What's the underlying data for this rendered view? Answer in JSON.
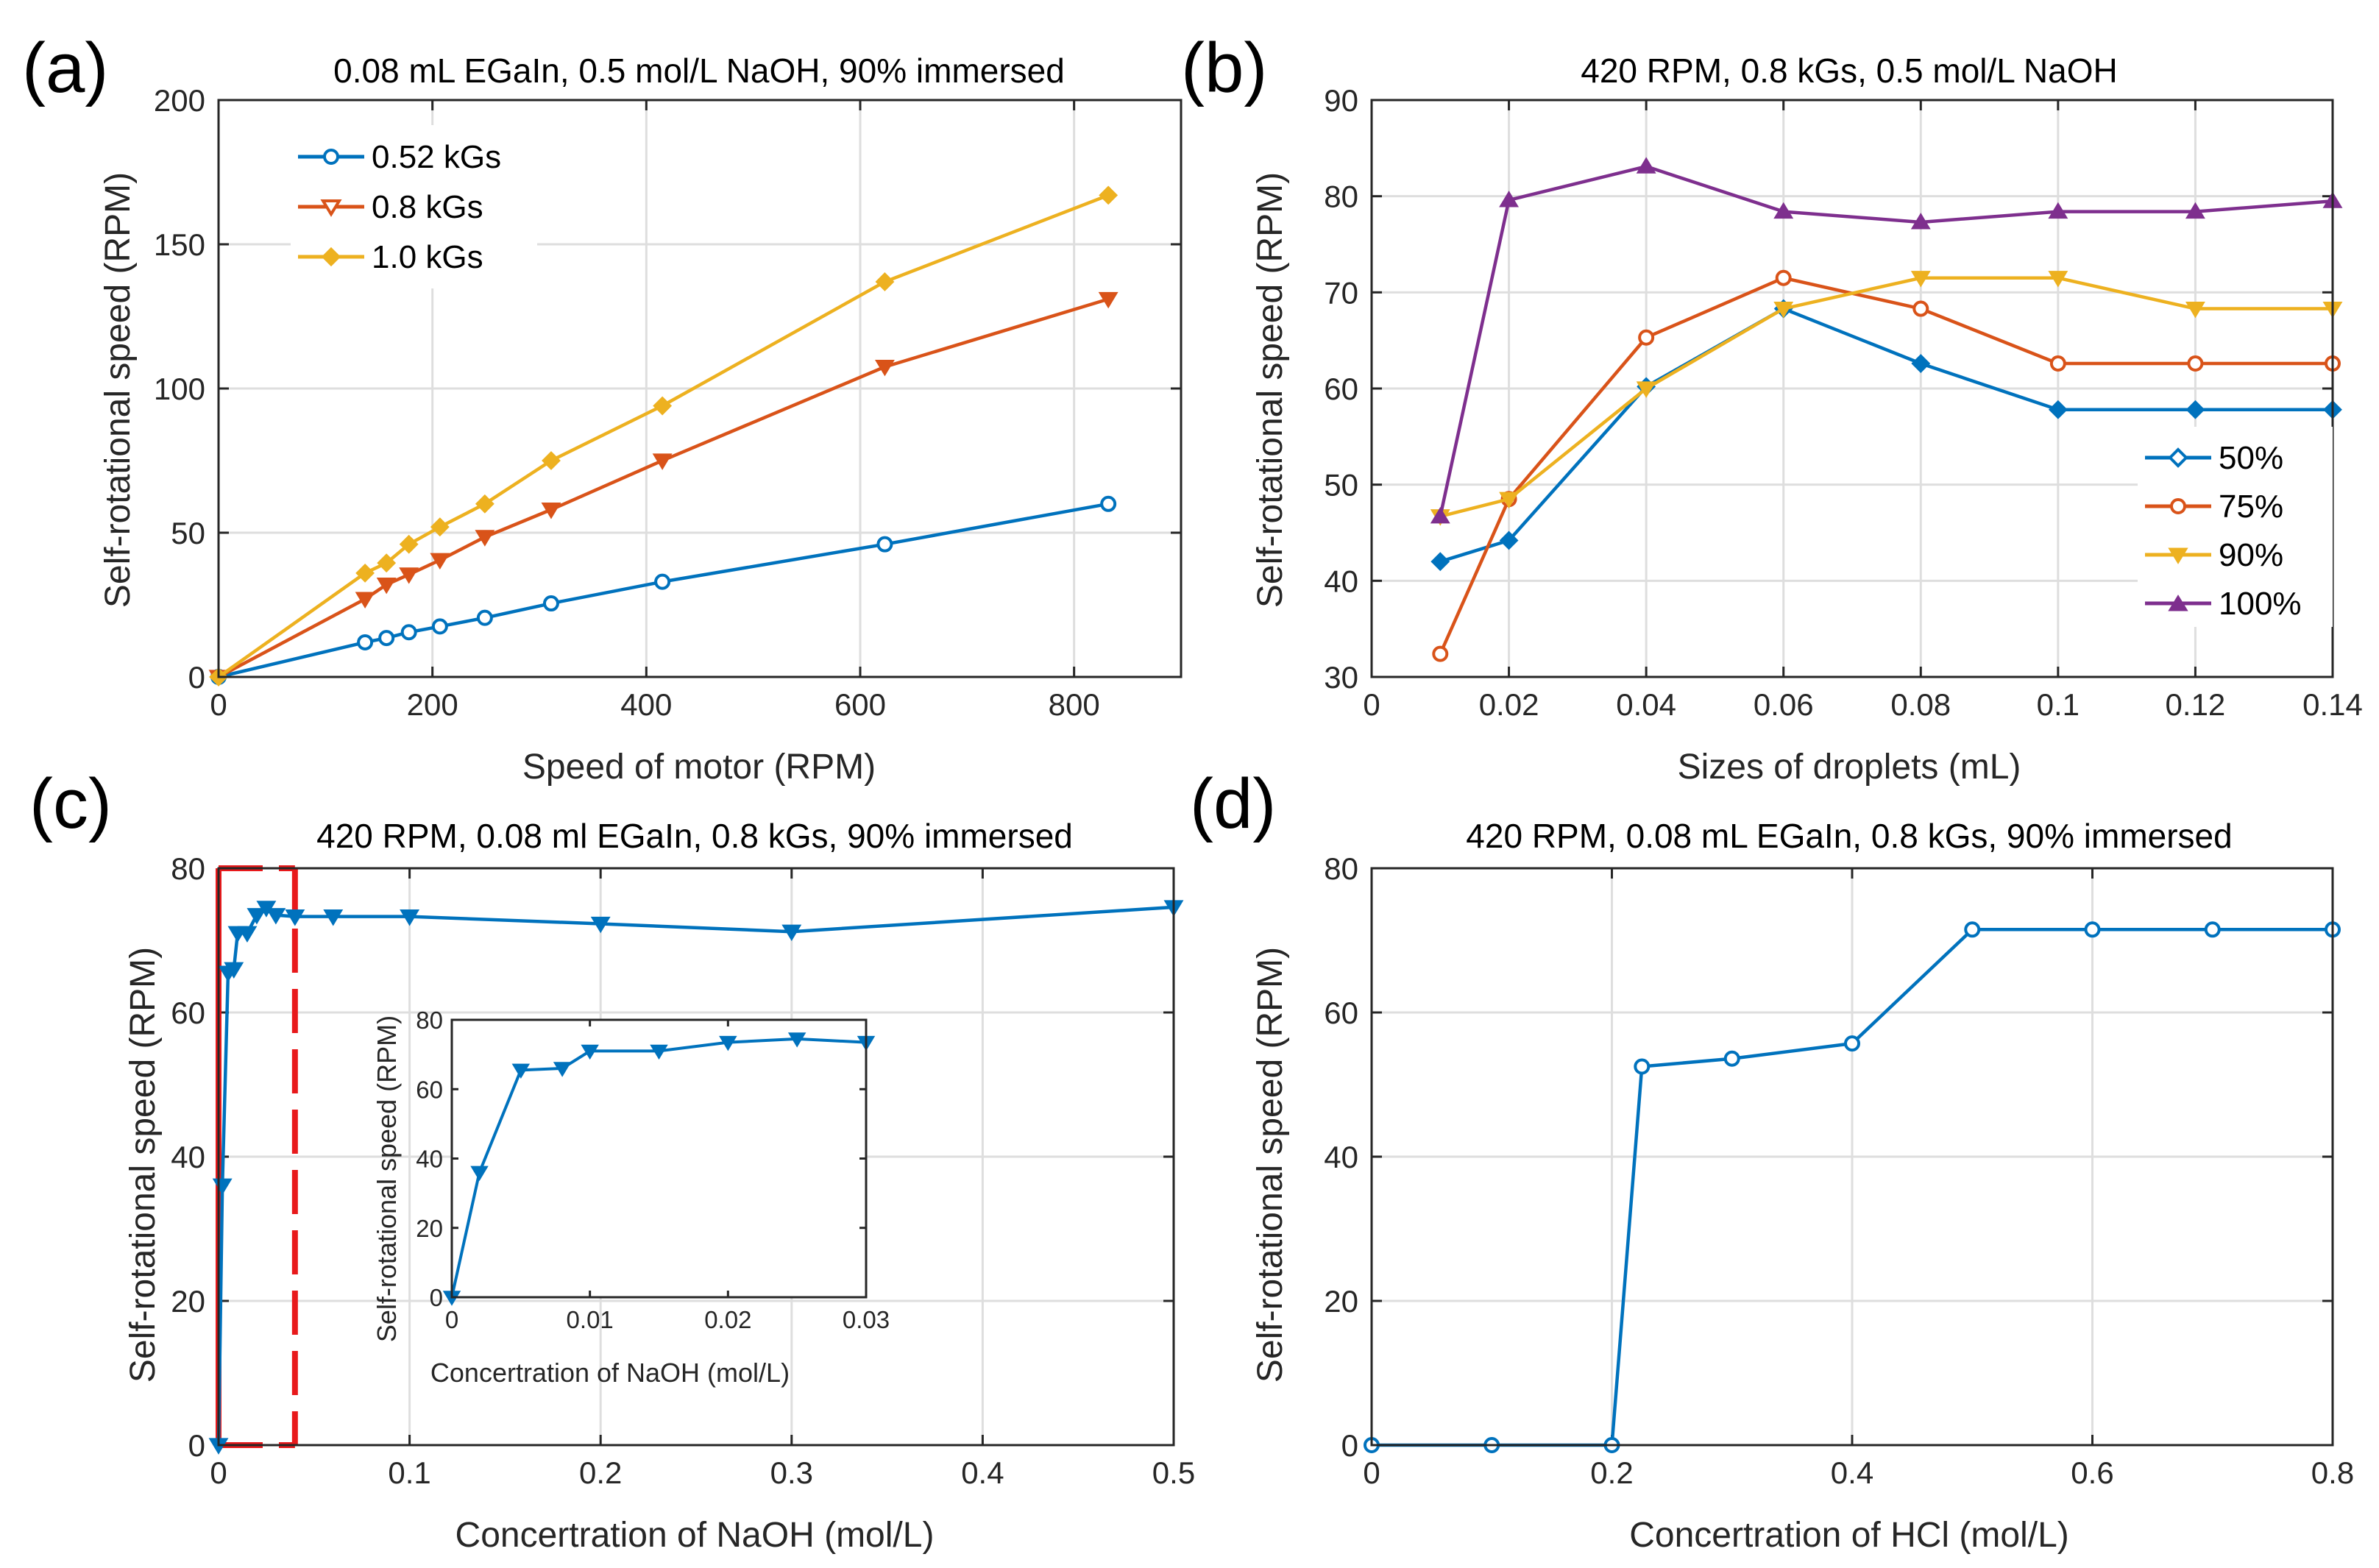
{
  "colors": {
    "blue": "#0072BD",
    "orange": "#D95319",
    "yellow": "#EDB120",
    "purple": "#7E2F8E",
    "grid": "#dedede",
    "axis": "#262626",
    "highlight": "#e8191b"
  },
  "chart_data": [
    {
      "id": "a",
      "type": "line",
      "panel_label": "(a)",
      "title": "0.08 mL EGaIn, 0.5 mol/L NaOH, 90% immersed",
      "xlabel": "Speed of motor (RPM)",
      "ylabel": "Self-rotational speed (RPM)",
      "xlim": [
        0,
        900
      ],
      "ylim": [
        0,
        200
      ],
      "xticks": [
        0,
        200,
        400,
        600,
        800
      ],
      "xtick_labels": [
        "0",
        "200",
        "400",
        "600",
        "800"
      ],
      "yticks": [
        0,
        50,
        100,
        150,
        200
      ],
      "ytick_labels": [
        "0",
        "50",
        "100",
        "150",
        "200"
      ],
      "grid": true,
      "legend": "top-left",
      "series": [
        {
          "name": "0.52 kGs",
          "color": "blue",
          "marker": "circle",
          "x": [
            0,
            137,
            157,
            178,
            207,
            249,
            311,
            415,
            623,
            832
          ],
          "y": [
            0,
            12,
            13.5,
            15.5,
            17.5,
            20.5,
            25.5,
            33,
            46,
            60
          ]
        },
        {
          "name": "0.8 kGs",
          "color": "orange",
          "marker": "triangle-down",
          "x": [
            0,
            137,
            157,
            178,
            207,
            249,
            311,
            415,
            623,
            832
          ],
          "y": [
            0,
            27,
            32,
            35.5,
            40.5,
            48.5,
            58,
            75,
            107.5,
            131
          ]
        },
        {
          "name": "1.0 kGs",
          "color": "yellow",
          "marker": "diamond",
          "x": [
            0,
            137,
            157,
            178,
            207,
            249,
            311,
            415,
            623,
            832
          ],
          "y": [
            0,
            36,
            39.5,
            46,
            52,
            60,
            75,
            94,
            137,
            167
          ]
        }
      ]
    },
    {
      "id": "b",
      "type": "line",
      "panel_label": "(b)",
      "title": "420 RPM, 0.8 kGs, 0.5 mol/L NaOH",
      "xlabel": "Sizes of droplets (mL)",
      "ylabel": "Self-rotational speed (RPM)",
      "xlim": [
        0,
        0.14
      ],
      "ylim": [
        30,
        90
      ],
      "xticks": [
        0,
        0.02,
        0.04,
        0.06,
        0.08,
        0.1,
        0.12,
        0.14
      ],
      "xtick_labels": [
        "0",
        "0.02",
        "0.04",
        "0.06",
        "0.08",
        "0.1",
        "0.12",
        "0.14"
      ],
      "yticks": [
        30,
        40,
        50,
        60,
        70,
        80,
        90
      ],
      "ytick_labels": [
        "30",
        "40",
        "50",
        "60",
        "70",
        "80",
        "90"
      ],
      "grid": true,
      "legend": "right",
      "series": [
        {
          "name": "50%",
          "color": "blue",
          "marker": "diamond",
          "x": [
            0.01,
            0.02,
            0.04,
            0.06,
            0.08,
            0.1,
            0.12,
            0.14
          ],
          "y": [
            42,
            44.2,
            60.2,
            68.3,
            62.6,
            57.8,
            57.8,
            57.8
          ]
        },
        {
          "name": "75%",
          "color": "orange",
          "marker": "circle",
          "x": [
            0.01,
            0.02,
            0.04,
            0.06,
            0.08,
            0.1,
            0.12,
            0.14
          ],
          "y": [
            32.4,
            48.5,
            65.3,
            71.5,
            68.3,
            62.6,
            62.6,
            62.6
          ]
        },
        {
          "name": "90%",
          "color": "yellow",
          "marker": "triangle-down",
          "x": [
            0.01,
            0.02,
            0.04,
            0.06,
            0.08,
            0.1,
            0.12,
            0.14
          ],
          "y": [
            46.7,
            48.5,
            60,
            68.3,
            71.5,
            71.5,
            68.3,
            68.3
          ]
        },
        {
          "name": "100%",
          "color": "purple",
          "marker": "triangle-up",
          "x": [
            0.01,
            0.02,
            0.04,
            0.06,
            0.08,
            0.1,
            0.12,
            0.14
          ],
          "y": [
            46.7,
            79.6,
            83.1,
            78.4,
            77.3,
            78.4,
            78.4,
            79.5
          ]
        }
      ]
    },
    {
      "id": "c",
      "type": "line",
      "panel_label": "(c)",
      "title": "420 RPM, 0.08 ml EGaIn, 0.8 kGs, 90% immersed",
      "xlabel": "Concertration of NaOH (mol/L)",
      "ylabel": "Self-rotational speed (RPM)",
      "xlim": [
        0,
        0.5
      ],
      "ylim": [
        0,
        80
      ],
      "xticks": [
        0,
        0.1,
        0.2,
        0.3,
        0.4,
        0.5
      ],
      "xtick_labels": [
        "0",
        "0.1",
        "0.2",
        "0.3",
        "0.4",
        "0.5"
      ],
      "yticks": [
        0,
        20,
        40,
        60,
        80
      ],
      "ytick_labels": [
        "0",
        "20",
        "40",
        "60",
        "80"
      ],
      "grid": true,
      "highlight_box_x": [
        0,
        0.04
      ],
      "series": [
        {
          "name": "NaOH",
          "color": "blue",
          "marker": "triangle-down",
          "x": [
            0,
            0.002,
            0.005,
            0.008,
            0.01,
            0.015,
            0.02,
            0.025,
            0.03,
            0.04,
            0.06,
            0.1,
            0.2,
            0.3,
            0.5
          ],
          "y": [
            0,
            36,
            65.5,
            66,
            71,
            71,
            73.5,
            74.5,
            73.5,
            73.3,
            73.3,
            73.3,
            72.3,
            71.2,
            74.6
          ]
        }
      ]
    },
    {
      "id": "c_inset",
      "type": "line",
      "xlabel": "Concertration of NaOH (mol/L)",
      "ylabel": "Self-rotational speed (RPM)",
      "xlim": [
        0,
        0.03
      ],
      "ylim": [
        0,
        80
      ],
      "xticks": [
        0,
        0.01,
        0.02,
        0.03
      ],
      "xtick_labels": [
        "0",
        "0.01",
        "0.02",
        "0.03"
      ],
      "yticks": [
        0,
        20,
        40,
        60,
        80
      ],
      "ytick_labels": [
        "0",
        "20",
        "40",
        "60",
        "80"
      ],
      "grid": false,
      "series": [
        {
          "name": "NaOH inset",
          "color": "blue",
          "marker": "triangle-down",
          "x": [
            0,
            0.002,
            0.005,
            0.008,
            0.01,
            0.015,
            0.02,
            0.025,
            0.03
          ],
          "y": [
            0,
            36,
            65.5,
            66,
            71,
            71,
            73.5,
            74.5,
            73.5
          ]
        }
      ]
    },
    {
      "id": "d",
      "type": "line",
      "panel_label": "(d)",
      "title": "420 RPM, 0.08 mL EGaIn, 0.8 kGs, 90% immersed",
      "xlabel": "Concertration of HCl (mol/L)",
      "ylabel": "Self-rotational speed (RPM)",
      "xlim": [
        0,
        0.8
      ],
      "ylim": [
        0,
        80
      ],
      "xticks": [
        0,
        0.2,
        0.4,
        0.6,
        0.8
      ],
      "xtick_labels": [
        "0",
        "0.2",
        "0.4",
        "0.6",
        "0.8"
      ],
      "yticks": [
        0,
        20,
        40,
        60,
        80
      ],
      "ytick_labels": [
        "0",
        "20",
        "40",
        "60",
        "80"
      ],
      "grid": true,
      "series": [
        {
          "name": "HCl",
          "color": "blue",
          "marker": "circle",
          "x": [
            0,
            0.1,
            0.2,
            0.225,
            0.3,
            0.4,
            0.5,
            0.6,
            0.7,
            0.8
          ],
          "y": [
            0,
            0,
            0,
            52.5,
            53.6,
            55.7,
            71.5,
            71.5,
            71.5,
            71.5
          ]
        }
      ]
    }
  ]
}
